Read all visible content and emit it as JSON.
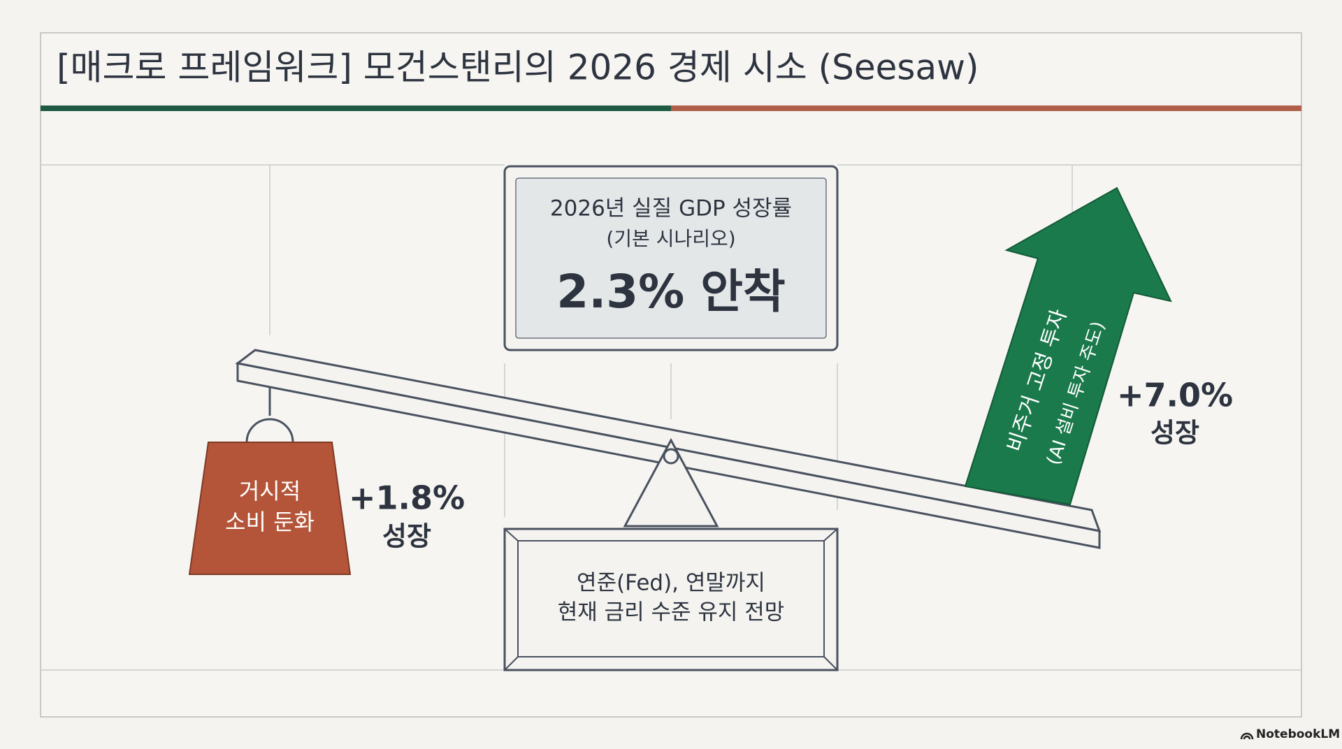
{
  "header": {
    "title": "[매크로 프레임워크] 모건스탠리의 2026 경제 시소 (Seesaw)"
  },
  "center_box": {
    "line1": "2026년 실질 GDP 성장률",
    "line2": "(기본 시나리오)",
    "value": "2.3% 안착"
  },
  "left_weight": {
    "line1": "거시적",
    "line2": "소비 둔화",
    "growth": "+1.8%",
    "growth_label": "성장"
  },
  "right_arrow": {
    "line1": "비주거 고정 투자",
    "line2": "(AI 설비 투자 주도)",
    "growth": "+7.0%",
    "growth_label": "성장"
  },
  "fulcrum_box": {
    "line1": "연준(Fed), 연말까지",
    "line2": "현재 금리 수준 유지 전망"
  },
  "footer": {
    "brand": "NotebookLM"
  }
}
